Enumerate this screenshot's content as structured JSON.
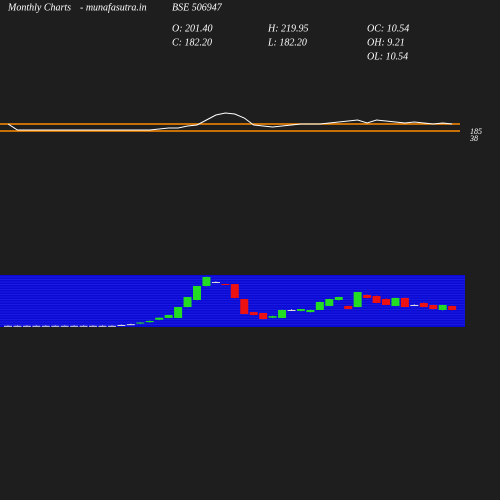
{
  "header": {
    "site": "Monthly Charts",
    "source": "- munafasutra.in",
    "symbol": "BSE 506947",
    "stats": [
      "O: 201.40",
      "H: 219.95",
      "OC: 10.54",
      "C: 182.20",
      "L: 182.20",
      "OH: 9.21",
      "OL: 10.54"
    ]
  },
  "chart_data": [
    {
      "type": "line",
      "color": "#ffffff",
      "hline_color": "#ff8c00",
      "ylim": [
        -151,
        689
      ],
      "yticks": [
        185,
        38
      ],
      "values": [
        185,
        59,
        59,
        59,
        59,
        59,
        59,
        59,
        59,
        59,
        59,
        59,
        59,
        59,
        59,
        59,
        80,
        101,
        101,
        143,
        164,
        269,
        374,
        416,
        395,
        311,
        164,
        143,
        122,
        143,
        164,
        185,
        185,
        185,
        206,
        227,
        248,
        269,
        206,
        269,
        248,
        227,
        206,
        227,
        206,
        185,
        206,
        185
      ]
    },
    {
      "type": "candlestick",
      "up_color": "#22dd22",
      "down_color": "#ee1111",
      "flat_color": "#dddddd",
      "panel_color": "#0a0ad2",
      "ylim": [
        158.5,
        223
      ],
      "candles": [
        [
          160,
          160.5,
          159.5,
          160
        ],
        [
          160,
          160.5,
          159.5,
          160
        ],
        [
          160,
          160.5,
          159.5,
          160
        ],
        [
          160,
          160.5,
          159.5,
          160
        ],
        [
          160,
          160.5,
          159.5,
          160
        ],
        [
          160,
          160.5,
          159.5,
          160
        ],
        [
          160,
          160.5,
          159.5,
          160
        ],
        [
          160,
          160.5,
          159.5,
          160
        ],
        [
          160,
          160.5,
          159.5,
          160
        ],
        [
          160,
          160.5,
          159.5,
          160
        ],
        [
          160,
          160.5,
          159.5,
          160
        ],
        [
          160,
          160.5,
          159.5,
          160
        ],
        [
          161,
          161.5,
          160.5,
          161
        ],
        [
          162,
          162.5,
          161.5,
          162
        ],
        [
          163,
          164.5,
          162.5,
          164
        ],
        [
          164.5,
          166.5,
          164,
          166
        ],
        [
          167.5,
          170,
          167,
          170
        ],
        [
          169.7,
          173.4,
          169.5,
          173.4
        ],
        [
          169.7,
          183.3,
          169.5,
          183.3
        ],
        [
          183.3,
          195.7,
          183,
          195.7
        ],
        [
          192,
          209.4,
          191.5,
          209.4
        ],
        [
          209.4,
          221,
          209,
          220.5
        ],
        [
          214.3,
          215,
          213.5,
          214.3
        ],
        [
          211.8,
          212,
          210.4,
          210.6
        ],
        [
          211.8,
          212,
          194,
          194.5
        ],
        [
          193.2,
          193.5,
          174.4,
          174.6
        ],
        [
          177,
          177.5,
          173,
          173.4
        ],
        [
          175.9,
          176,
          168,
          168.4
        ],
        [
          170,
          172.5,
          169.5,
          172
        ],
        [
          169.7,
          180,
          169.5,
          179.6
        ],
        [
          179.6,
          180.5,
          179,
          179.6
        ],
        [
          178.5,
          181,
          178,
          180.8
        ],
        [
          177,
          180,
          176.5,
          179.6
        ],
        [
          179.6,
          190,
          179.5,
          189.5
        ],
        [
          184.6,
          193.5,
          184.5,
          193.2
        ],
        [
          192,
          196,
          191.5,
          195.7
        ],
        [
          184.6,
          185,
          180.5,
          180.8
        ],
        [
          183.3,
          202,
          183,
          201.9
        ],
        [
          198.2,
          199,
          194,
          194.5
        ],
        [
          197,
          197.5,
          188,
          188.3
        ],
        [
          193.2,
          194,
          185.5,
          185.8
        ],
        [
          184.6,
          194.8,
          184.5,
          194.5
        ],
        [
          194.5,
          195,
          183,
          183.3
        ],
        [
          185.8,
          186.5,
          185,
          185.8
        ],
        [
          188.3,
          189,
          183,
          183.3
        ],
        [
          185.8,
          186,
          180.5,
          180.8
        ],
        [
          179.6,
          186,
          179,
          185.8
        ],
        [
          184.6,
          185,
          179.2,
          179.6
        ]
      ]
    }
  ]
}
